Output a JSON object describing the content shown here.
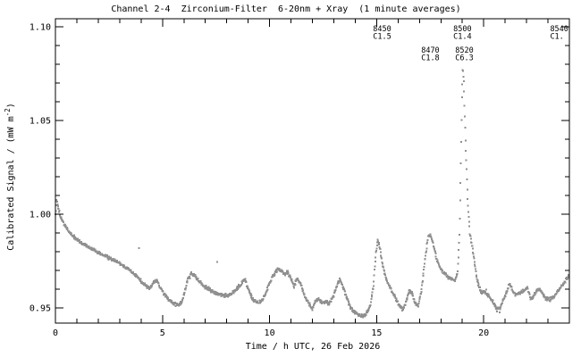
{
  "chart": {
    "title": "Channel 2-4  Zirconium-Filter  6-20nm + Xray  (1 minute averages)",
    "xlabel": "Time / h UTC, 26 Feb 2026",
    "ylabel_prefix": "Calibrated Signal / (mW m",
    "ylabel_sup": "-2",
    "ylabel_suffix": ")",
    "colors": {
      "dots": "#909090",
      "axis": "#000000",
      "text": "#000000",
      "background": "#ffffff"
    }
  },
  "chart_data": {
    "type": "scatter",
    "title": "Channel 2-4  Zirconium-Filter  6-20nm + Xray  (1 minute averages)",
    "xlabel": "Time / h UTC, 26 Feb 2026",
    "ylabel": "Calibrated Signal / (mW m^-2)",
    "sampling": "1 minute averages",
    "xlim": [
      0,
      24
    ],
    "ylim": [
      0.9419,
      1.1043
    ],
    "x_major_ticks": [
      0,
      5,
      10,
      15,
      20
    ],
    "x_tick_labels": [
      "0",
      "5",
      "10",
      "15",
      "20"
    ],
    "x_minor_step": 1,
    "y_major_ticks": [
      0.95,
      1.0,
      1.05,
      1.1
    ],
    "y_tick_labels": [
      "0.95",
      "1.00",
      "1.05",
      "1.10"
    ],
    "y_minor_step": 0.01,
    "grid": false,
    "legend": "none",
    "anchors": [
      [
        0.0,
        1.0
      ],
      [
        0.05,
        1.007
      ],
      [
        0.12,
        1.0045
      ],
      [
        0.2,
        1.0
      ],
      [
        0.3,
        0.997
      ],
      [
        0.5,
        0.9925
      ],
      [
        0.7,
        0.99
      ],
      [
        0.9,
        0.9875
      ],
      [
        1.1,
        0.9855
      ],
      [
        1.4,
        0.9835
      ],
      [
        1.7,
        0.9815
      ],
      [
        2.0,
        0.9795
      ],
      [
        2.3,
        0.978
      ],
      [
        2.6,
        0.976
      ],
      [
        2.9,
        0.9745
      ],
      [
        3.2,
        0.9725
      ],
      [
        3.5,
        0.97
      ],
      [
        3.8,
        0.967
      ],
      [
        4.0,
        0.9645
      ],
      [
        4.2,
        0.962
      ],
      [
        4.4,
        0.9605
      ],
      [
        4.6,
        0.964
      ],
      [
        4.75,
        0.9645
      ],
      [
        4.9,
        0.9605
      ],
      [
        5.1,
        0.957
      ],
      [
        5.3,
        0.9545
      ],
      [
        5.5,
        0.9525
      ],
      [
        5.7,
        0.9515
      ],
      [
        5.9,
        0.953
      ],
      [
        6.05,
        0.959
      ],
      [
        6.2,
        0.966
      ],
      [
        6.35,
        0.9685
      ],
      [
        6.5,
        0.9675
      ],
      [
        6.7,
        0.9645
      ],
      [
        6.9,
        0.962
      ],
      [
        7.1,
        0.9605
      ],
      [
        7.3,
        0.959
      ],
      [
        7.5,
        0.9575
      ],
      [
        7.7,
        0.957
      ],
      [
        7.9,
        0.9565
      ],
      [
        8.1,
        0.957
      ],
      [
        8.3,
        0.958
      ],
      [
        8.5,
        0.9605
      ],
      [
        8.7,
        0.963
      ],
      [
        8.85,
        0.9655
      ],
      [
        9.0,
        0.96
      ],
      [
        9.2,
        0.955
      ],
      [
        9.4,
        0.953
      ],
      [
        9.6,
        0.953
      ],
      [
        9.8,
        0.957
      ],
      [
        10.0,
        0.963
      ],
      [
        10.2,
        0.968
      ],
      [
        10.4,
        0.971
      ],
      [
        10.55,
        0.97
      ],
      [
        10.7,
        0.968
      ],
      [
        10.85,
        0.969
      ],
      [
        11.0,
        0.9655
      ],
      [
        11.15,
        0.9615
      ],
      [
        11.3,
        0.966
      ],
      [
        11.45,
        0.963
      ],
      [
        11.6,
        0.9575
      ],
      [
        11.8,
        0.953
      ],
      [
        12.0,
        0.949
      ],
      [
        12.15,
        0.954
      ],
      [
        12.3,
        0.9545
      ],
      [
        12.45,
        0.9525
      ],
      [
        12.6,
        0.9535
      ],
      [
        12.75,
        0.952
      ],
      [
        12.9,
        0.9545
      ],
      [
        13.05,
        0.959
      ],
      [
        13.2,
        0.9635
      ],
      [
        13.3,
        0.965
      ],
      [
        13.45,
        0.9605
      ],
      [
        13.6,
        0.9555
      ],
      [
        13.75,
        0.951
      ],
      [
        13.9,
        0.9485
      ],
      [
        14.1,
        0.947
      ],
      [
        14.3,
        0.9455
      ],
      [
        14.5,
        0.9465
      ],
      [
        14.7,
        0.951
      ],
      [
        14.85,
        0.962
      ],
      [
        14.95,
        0.978
      ],
      [
        15.05,
        0.9865
      ],
      [
        15.15,
        0.982
      ],
      [
        15.3,
        0.9715
      ],
      [
        15.45,
        0.965
      ],
      [
        15.6,
        0.9615
      ],
      [
        15.8,
        0.957
      ],
      [
        16.0,
        0.9525
      ],
      [
        16.2,
        0.949
      ],
      [
        16.35,
        0.952
      ],
      [
        16.5,
        0.959
      ],
      [
        16.65,
        0.958
      ],
      [
        16.8,
        0.9525
      ],
      [
        16.95,
        0.9515
      ],
      [
        17.1,
        0.96
      ],
      [
        17.25,
        0.975
      ],
      [
        17.4,
        0.988
      ],
      [
        17.5,
        0.989
      ],
      [
        17.65,
        0.984
      ],
      [
        17.8,
        0.976
      ],
      [
        17.95,
        0.972
      ],
      [
        18.1,
        0.969
      ],
      [
        18.3,
        0.967
      ],
      [
        18.5,
        0.9655
      ],
      [
        18.65,
        0.9645
      ],
      [
        18.78,
        0.968
      ],
      [
        18.87,
        0.99
      ],
      [
        18.93,
        1.025
      ],
      [
        18.98,
        1.06
      ],
      [
        19.02,
        1.0785
      ],
      [
        19.07,
        1.07
      ],
      [
        19.15,
        1.04
      ],
      [
        19.25,
        1.008
      ],
      [
        19.35,
        0.99
      ],
      [
        19.5,
        0.98
      ],
      [
        19.62,
        0.97
      ],
      [
        19.75,
        0.962
      ],
      [
        19.9,
        0.958
      ],
      [
        20.05,
        0.9585
      ],
      [
        20.2,
        0.957
      ],
      [
        20.4,
        0.9535
      ],
      [
        20.6,
        0.95
      ],
      [
        20.75,
        0.9495
      ],
      [
        20.9,
        0.954
      ],
      [
        21.05,
        0.9575
      ],
      [
        21.2,
        0.9625
      ],
      [
        21.35,
        0.959
      ],
      [
        21.5,
        0.957
      ],
      [
        21.7,
        0.958
      ],
      [
        21.9,
        0.9595
      ],
      [
        22.05,
        0.961
      ],
      [
        22.2,
        0.9545
      ],
      [
        22.35,
        0.957
      ],
      [
        22.55,
        0.96
      ],
      [
        22.7,
        0.9585
      ],
      [
        22.9,
        0.955
      ],
      [
        23.1,
        0.9545
      ],
      [
        23.3,
        0.9565
      ],
      [
        23.5,
        0.9595
      ],
      [
        23.7,
        0.9625
      ],
      [
        23.9,
        0.966
      ],
      [
        24.0,
        0.968
      ]
    ],
    "outliers": [
      [
        3.9,
        0.982
      ],
      [
        7.55,
        0.9745
      ]
    ],
    "annotations": [
      {
        "t": 14.83,
        "event": "8450",
        "class": "C1.5",
        "row": 1
      },
      {
        "t": 17.08,
        "event": "8470",
        "class": "C1.8",
        "row": 2
      },
      {
        "t": 18.58,
        "event": "8500",
        "class": "C1.4",
        "row": 1
      },
      {
        "t": 18.67,
        "event": "8520",
        "class": "C6.3",
        "row": 2
      },
      {
        "t": 23.1,
        "event": "8540",
        "class": "C1.",
        "row": 1
      }
    ]
  }
}
